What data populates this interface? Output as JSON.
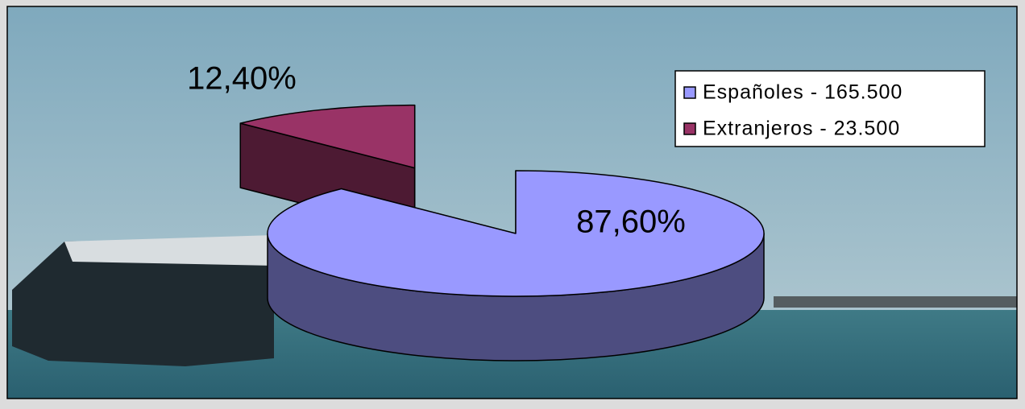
{
  "chart_data": {
    "type": "pie",
    "categories": [
      "Españoles - 165.500",
      "Extranjeros - 23.500"
    ],
    "values": [
      87.6,
      12.4
    ],
    "value_labels": [
      "87,60%",
      "12,40%"
    ],
    "colors": [
      "#9999ff",
      "#993366"
    ],
    "legend": "top-right"
  }
}
